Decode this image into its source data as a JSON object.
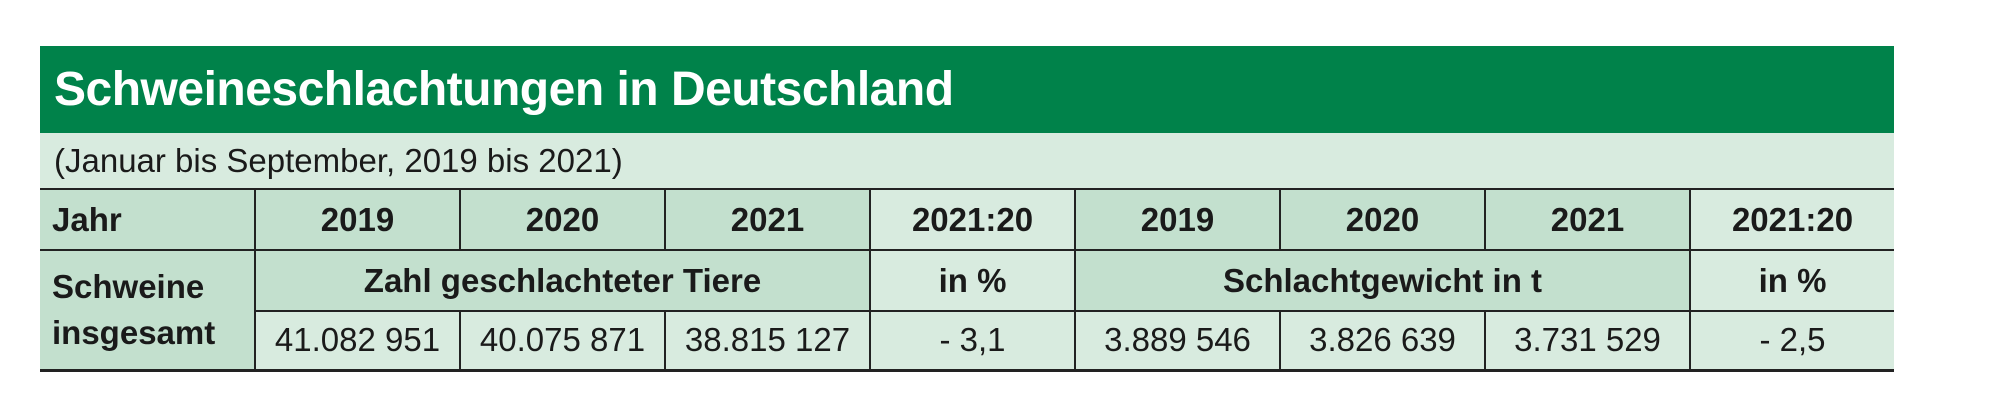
{
  "colors": {
    "header_green": "#00824a",
    "light_green": "#d8ebdf",
    "mid_green": "#c3e0ce"
  },
  "title": "Schweineschlachtungen in Deutschland",
  "subtitle": "(Januar bis September, 2019 bis 2021)",
  "table": {
    "header": {
      "row_label": "Jahr",
      "years_a": [
        "2019",
        "2020",
        "2021"
      ],
      "change_a": "2021:20",
      "years_b": [
        "2019",
        "2020",
        "2021"
      ],
      "change_b": "2021:20"
    },
    "row_label_line1": "Schweine",
    "row_label_line2": "insgesamt",
    "group_a_label": "Zahl geschlachteter Tiere",
    "unit_a": "in %",
    "group_b_label": "Schlachtgewicht in t",
    "unit_b": "in %",
    "values_a": [
      "41.082 951",
      "40.075 871",
      "38.815 127"
    ],
    "change_a_value": "- 3,1",
    "values_b": [
      "3.889 546",
      "3.826 639",
      "3.731 529"
    ],
    "change_b_value": "- 2,5"
  }
}
